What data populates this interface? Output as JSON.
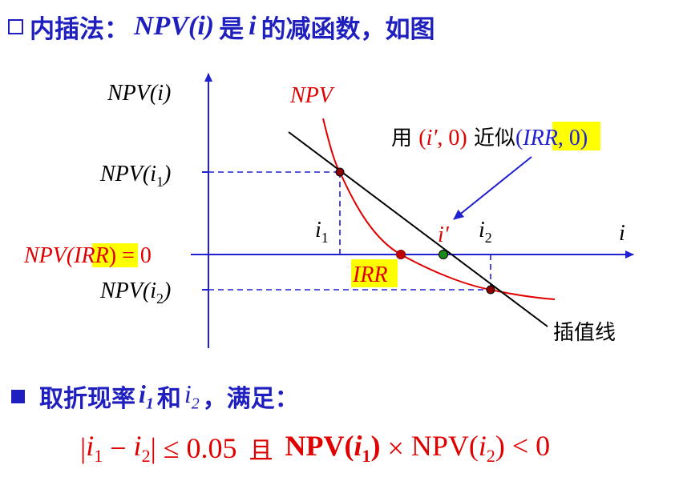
{
  "title": {
    "prefix": "内插法：",
    "npv": "NPV(",
    "i_arg": "i",
    "npv_close": ")",
    "mid": " 是 ",
    "i_var": "i",
    "suffix": " 的减函数，如图"
  },
  "diagram": {
    "y_axis_label": "NPV(i)",
    "x_axis_label": "i",
    "curve_label": "NPV",
    "npv_i1": "NPV(i1)",
    "npv_irr": "NPV(IRR) = 0",
    "npv_i2": "NPV(i2)",
    "i1_label": "i1",
    "i2_label": "i2",
    "i_prime_label": "i'",
    "irr_label": "IRR",
    "interp_line_label": "插值线",
    "approx_prefix": "用 ",
    "approx_point": "(i', 0)",
    "approx_mid": " 近似(",
    "approx_irr": "IRR",
    "approx_tail": ", 0)",
    "colors": {
      "axis": "#2020d0",
      "curve": "#e00000",
      "interp_line": "#000000",
      "highlight": "#ffff00",
      "green_point": "#1a8a1a"
    }
  },
  "bullet": {
    "text1": "取折现率 ",
    "i1": "i",
    "i1_sub": "1",
    "and": " 和 ",
    "i2": "i",
    "i2_sub": "2",
    "text2": "，满足："
  },
  "condition": {
    "abs_open": "|",
    "i1": "i",
    "i1_sub": "1",
    "minus": " − ",
    "i2": "i",
    "i2_sub": "2",
    "abs_close": "|",
    "leq": " ≤ 0.05 ",
    "and_cjk": "且",
    "npv1_open": " NPV(",
    "npv1_i": "i",
    "npv1_sub": "1",
    "npv1_close": ")",
    "times": " × ",
    "npv2_open": "NPV(",
    "npv2_i": "i",
    "npv2_sub": "2",
    "npv2_close": ") < 0"
  }
}
